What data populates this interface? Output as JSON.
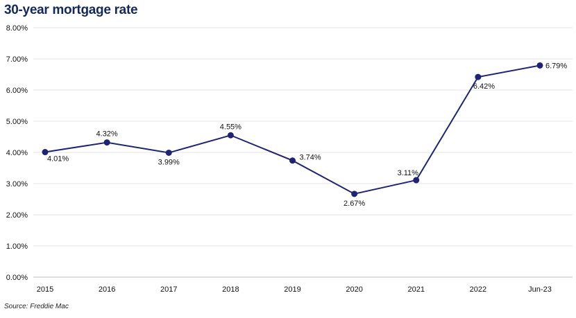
{
  "chart_data": {
    "type": "line",
    "title": "30-year mortgage rate",
    "source": "Source: Freddie Mac",
    "categories": [
      "2015",
      "2016",
      "2017",
      "2018",
      "2019",
      "2020",
      "2021",
      "2022",
      "Jun-23"
    ],
    "values": [
      4.01,
      4.32,
      3.99,
      4.55,
      3.74,
      2.67,
      3.11,
      6.42,
      6.79
    ],
    "data_labels": [
      "4.01%",
      "4.32%",
      "3.99%",
      "4.55%",
      "3.74%",
      "2.67%",
      "3.11%",
      "6.42%",
      "6.79%"
    ],
    "y_ticks": [
      {
        "value": 0,
        "label": "0.00%"
      },
      {
        "value": 1,
        "label": "1.00%"
      },
      {
        "value": 2,
        "label": "2.00%"
      },
      {
        "value": 3,
        "label": "3.00%"
      },
      {
        "value": 4,
        "label": "4.00%"
      },
      {
        "value": 5,
        "label": "5.00%"
      },
      {
        "value": 6,
        "label": "6.00%"
      },
      {
        "value": 7,
        "label": "7.00%"
      },
      {
        "value": 8,
        "label": "8.00%"
      }
    ],
    "ylim": [
      0,
      8
    ],
    "xlabel": "",
    "ylabel": "",
    "grid": true,
    "line_color": "#1f2472",
    "grid_color": "#e3e3e3"
  }
}
